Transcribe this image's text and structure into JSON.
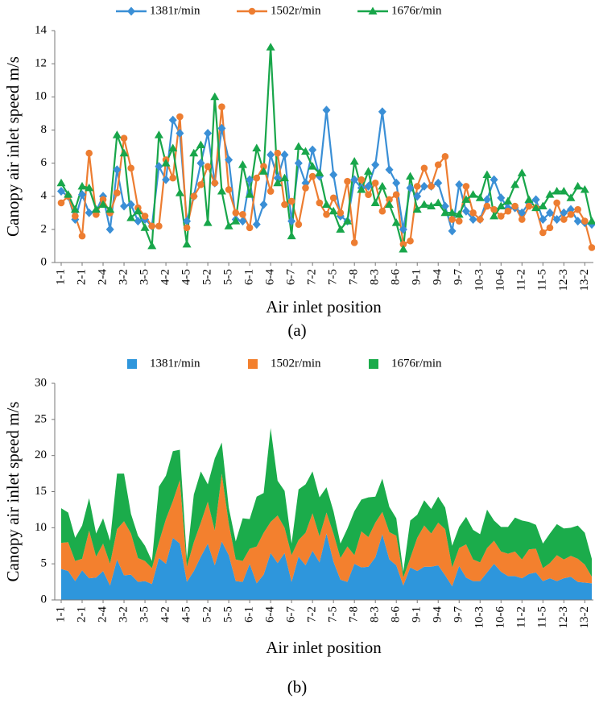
{
  "chart_data": [
    {
      "type": "line",
      "panel_label": "(a)",
      "xlabel": "Air inlet position",
      "ylabel": "Canopy air inlet speed m/s",
      "legend": "top",
      "categories": [
        "1-1",
        null,
        null,
        "2-1",
        null,
        null,
        "2-4",
        null,
        null,
        "3-2",
        null,
        null,
        "3-5",
        null,
        null,
        "4-2",
        null,
        null,
        "4-5",
        null,
        null,
        "5-2",
        null,
        null,
        "5-5",
        null,
        null,
        "6-1",
        null,
        null,
        "6-4",
        null,
        null,
        "6-7",
        null,
        null,
        "7-2",
        null,
        null,
        "7-5",
        null,
        null,
        "7-8",
        null,
        null,
        "8-3",
        null,
        null,
        "8-6",
        null,
        null,
        "9-1",
        null,
        null,
        "9-4",
        null,
        null,
        "9-7",
        null,
        null,
        "10-3",
        null,
        null,
        "10-6",
        null,
        null,
        "11-2",
        null,
        null,
        "11-5",
        null,
        null,
        "12-3",
        null,
        null,
        "13-2",
        null
      ],
      "ylim": [
        0,
        14
      ],
      "yticks": [
        0,
        2,
        4,
        6,
        8,
        10,
        12,
        14
      ],
      "series": [
        {
          "name": "1381r/min",
          "color": "#3a8fd6",
          "marker": "diamond",
          "values": [
            4.3,
            4.0,
            2.6,
            4.1,
            3.0,
            3.1,
            4.0,
            2.0,
            5.6,
            3.4,
            3.5,
            2.5,
            2.6,
            2.2,
            5.8,
            5.0,
            8.6,
            7.8,
            2.5,
            4.0,
            6.0,
            7.8,
            4.8,
            8.1,
            6.2,
            2.6,
            2.5,
            5.0,
            2.3,
            3.5,
            6.5,
            5.1,
            6.5,
            2.5,
            6.0,
            4.8,
            6.8,
            5.2,
            9.2,
            5.3,
            2.8,
            2.5,
            5.0,
            4.5,
            4.6,
            5.9,
            9.1,
            5.6,
            4.8,
            2.0,
            4.5,
            4.0,
            4.6,
            4.6,
            4.8,
            3.4,
            1.9,
            4.7,
            3.1,
            2.6,
            2.6,
            3.8,
            5.0,
            3.9,
            3.3,
            3.3,
            3.0,
            3.6,
            3.8,
            2.6,
            3.0,
            2.6,
            3.0,
            3.2,
            2.5,
            2.4,
            2.3
          ]
        },
        {
          "name": "1502r/min",
          "color": "#ed7d31",
          "marker": "circle",
          "values": [
            3.6,
            4.0,
            2.8,
            1.6,
            6.6,
            2.9,
            3.8,
            3.0,
            4.2,
            7.5,
            5.7,
            3.3,
            2.8,
            2.2,
            2.2,
            6.2,
            5.1,
            8.8,
            2.1,
            4.0,
            4.7,
            5.8,
            4.8,
            9.4,
            4.4,
            3.0,
            2.9,
            2.1,
            5.1,
            5.8,
            4.3,
            6.6,
            3.5,
            3.7,
            2.3,
            4.5,
            5.2,
            3.6,
            2.9,
            3.9,
            3.0,
            4.9,
            1.2,
            5.0,
            4.1,
            4.8,
            3.1,
            3.8,
            4.1,
            1.1,
            1.3,
            4.6,
            5.7,
            4.6,
            5.9,
            6.4,
            2.6,
            2.5,
            4.6,
            3.0,
            2.6,
            3.4,
            3.2,
            2.8,
            3.1,
            3.4,
            2.6,
            3.4,
            3.3,
            1.8,
            2.1,
            3.6,
            2.6,
            2.9,
            3.2,
            2.5,
            0.9
          ]
        },
        {
          "name": "1676r/min",
          "color": "#18a64a",
          "marker": "triangle",
          "values": [
            4.8,
            4.1,
            3.2,
            4.6,
            4.5,
            3.2,
            3.5,
            3.2,
            7.7,
            6.6,
            2.7,
            3.1,
            2.1,
            1.0,
            7.7,
            6.0,
            6.9,
            4.2,
            1.1,
            6.6,
            7.1,
            2.4,
            10.0,
            4.3,
            2.2,
            2.5,
            5.9,
            4.1,
            6.9,
            5.5,
            13.0,
            4.8,
            5.1,
            1.6,
            7.0,
            6.7,
            5.8,
            5.4,
            3.5,
            3.1,
            2.0,
            2.5,
            6.1,
            4.4,
            5.5,
            3.6,
            4.6,
            3.5,
            2.4,
            0.8,
            5.2,
            3.2,
            3.5,
            3.4,
            3.6,
            3.0,
            3.0,
            2.9,
            3.8,
            4.1,
            3.9,
            5.3,
            2.8,
            3.4,
            3.7,
            4.7,
            5.4,
            3.8,
            3.3,
            3.4,
            4.1,
            4.3,
            4.3,
            3.9,
            4.6,
            4.4,
            2.5
          ]
        }
      ]
    },
    {
      "type": "area",
      "stacked": true,
      "panel_label": "(b)",
      "xlabel": "Air inlet position",
      "ylabel": "Canopy air inlet speed m/s",
      "legend": "top",
      "categories": [
        "1-1",
        null,
        null,
        "2-1",
        null,
        null,
        "2-4",
        null,
        null,
        "3-2",
        null,
        null,
        "3-5",
        null,
        null,
        "4-2",
        null,
        null,
        "4-5",
        null,
        null,
        "5-2",
        null,
        null,
        "5-5",
        null,
        null,
        "6-1",
        null,
        null,
        "6-4",
        null,
        null,
        "6-7",
        null,
        null,
        "7-2",
        null,
        null,
        "7-5",
        null,
        null,
        "7-8",
        null,
        null,
        "8-3",
        null,
        null,
        "8-6",
        null,
        null,
        "9-1",
        null,
        null,
        "9-4",
        null,
        null,
        "9-7",
        null,
        null,
        "10-3",
        null,
        null,
        "10-6",
        null,
        null,
        "11-2",
        null,
        null,
        "11-5",
        null,
        null,
        "12-3",
        null,
        null,
        "13-2",
        null
      ],
      "ylim": [
        0,
        30
      ],
      "yticks": [
        0,
        5,
        10,
        15,
        20,
        25,
        30
      ],
      "series": [
        {
          "name": "1381r/min",
          "color": "#2e96dc",
          "values": [
            4.3,
            4.0,
            2.6,
            4.1,
            3.0,
            3.1,
            4.0,
            2.0,
            5.6,
            3.4,
            3.5,
            2.5,
            2.6,
            2.2,
            5.8,
            5.0,
            8.6,
            7.8,
            2.5,
            4.0,
            6.0,
            7.8,
            4.8,
            8.1,
            6.2,
            2.6,
            2.5,
            5.0,
            2.3,
            3.5,
            6.5,
            5.1,
            6.5,
            2.5,
            6.0,
            4.8,
            6.8,
            5.2,
            9.2,
            5.3,
            2.8,
            2.5,
            5.0,
            4.5,
            4.6,
            5.9,
            9.1,
            5.6,
            4.8,
            2.0,
            4.5,
            4.0,
            4.6,
            4.6,
            4.8,
            3.4,
            1.9,
            4.7,
            3.1,
            2.6,
            2.6,
            3.8,
            5.0,
            3.9,
            3.3,
            3.3,
            3.0,
            3.6,
            3.8,
            2.6,
            3.0,
            2.6,
            3.0,
            3.2,
            2.5,
            2.4,
            2.3
          ]
        },
        {
          "name": "1502r/min",
          "color": "#f3802e",
          "values": [
            3.6,
            4.0,
            2.8,
            1.6,
            6.6,
            2.9,
            3.8,
            3.0,
            4.2,
            7.5,
            5.7,
            3.3,
            2.8,
            2.2,
            2.2,
            6.2,
            5.1,
            8.8,
            2.1,
            4.0,
            4.7,
            5.8,
            4.8,
            9.4,
            4.4,
            3.0,
            2.9,
            2.1,
            5.1,
            5.8,
            4.3,
            6.6,
            3.5,
            3.7,
            2.3,
            4.5,
            5.2,
            3.6,
            2.9,
            3.9,
            3.0,
            4.9,
            1.2,
            5.0,
            4.1,
            4.8,
            3.1,
            3.8,
            4.1,
            1.1,
            1.3,
            4.6,
            5.7,
            4.6,
            5.9,
            6.4,
            2.6,
            2.5,
            4.6,
            3.0,
            2.6,
            3.4,
            3.2,
            2.8,
            3.1,
            3.4,
            2.6,
            3.4,
            3.3,
            1.8,
            2.1,
            3.6,
            2.6,
            2.9,
            3.2,
            2.5,
            0.9
          ]
        },
        {
          "name": "1676r/min",
          "color": "#1bac4b",
          "values": [
            4.8,
            4.1,
            3.2,
            4.6,
            4.5,
            3.2,
            3.5,
            3.2,
            7.7,
            6.6,
            2.7,
            3.1,
            2.1,
            1.0,
            7.7,
            6.0,
            6.9,
            4.2,
            1.1,
            6.6,
            7.1,
            2.4,
            10.0,
            4.3,
            2.2,
            2.5,
            5.9,
            4.1,
            6.9,
            5.5,
            13.0,
            4.8,
            5.1,
            1.6,
            7.0,
            6.7,
            5.8,
            5.4,
            3.5,
            3.1,
            2.0,
            2.5,
            6.1,
            4.4,
            5.5,
            3.6,
            4.6,
            3.5,
            2.4,
            0.8,
            5.2,
            3.2,
            3.5,
            3.4,
            3.6,
            3.0,
            3.0,
            2.9,
            3.8,
            4.1,
            3.9,
            5.3,
            2.8,
            3.4,
            3.7,
            4.7,
            5.4,
            3.8,
            3.3,
            3.4,
            4.1,
            4.3,
            4.3,
            3.9,
            4.6,
            4.4,
            2.5
          ]
        }
      ]
    }
  ]
}
